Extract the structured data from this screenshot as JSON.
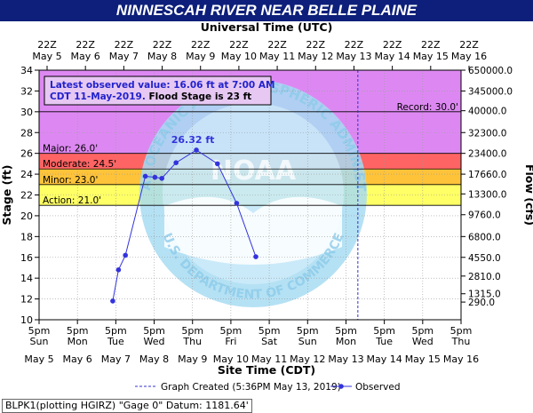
{
  "chart_data": {
    "type": "line",
    "title": "NINNESCAH RIVER NEAR BELLE PLAINE",
    "top_axis_title": "Universal Time (UTC)",
    "xlabel": "Site Time (CDT)",
    "ylabel": "Stage (ft)",
    "right_axis_label": "Flow (cfs)",
    "ylim": [
      10,
      34
    ],
    "y_ticks": [
      "10",
      "12",
      "14",
      "16",
      "18",
      "20",
      "22",
      "24",
      "26",
      "28",
      "30",
      "32",
      "34"
    ],
    "right_ticks": [
      {
        "stage": 11.7,
        "label": "290.0"
      },
      {
        "stage": 12.5,
        "label": "1315.0"
      },
      {
        "stage": 14.2,
        "label": "2810.0"
      },
      {
        "stage": 16.0,
        "label": "4550.0"
      },
      {
        "stage": 18.0,
        "label": "6800.0"
      },
      {
        "stage": 20.1,
        "label": "9760.0"
      },
      {
        "stage": 22.1,
        "label": "13300.0"
      },
      {
        "stage": 24.0,
        "label": "17660.0"
      },
      {
        "stage": 26.0,
        "label": "23400.0"
      },
      {
        "stage": 28.0,
        "label": "32300.0"
      },
      {
        "stage": 30.1,
        "label": "40000.0"
      },
      {
        "stage": 32.0,
        "label": "345000.0"
      },
      {
        "stage": 34.0,
        "label": "650000.0"
      }
    ],
    "bottom_ticks": [
      {
        "time": "5pm",
        "day": "Sun",
        "date": "May 5"
      },
      {
        "time": "5pm",
        "day": "Mon",
        "date": "May 6"
      },
      {
        "time": "5pm",
        "day": "Tue",
        "date": "May 7"
      },
      {
        "time": "5pm",
        "day": "Wed",
        "date": "May 8"
      },
      {
        "time": "5pm",
        "day": "Thu",
        "date": "May 9"
      },
      {
        "time": "5pm",
        "day": "Fri",
        "date": "May 10"
      },
      {
        "time": "5pm",
        "day": "Sat",
        "date": "May 11"
      },
      {
        "time": "5pm",
        "day": "Sun",
        "date": "May 12"
      },
      {
        "time": "5pm",
        "day": "Mon",
        "date": "May 13"
      },
      {
        "time": "5pm",
        "day": "Tue",
        "date": "May 14"
      },
      {
        "time": "5pm",
        "day": "Wed",
        "date": "May 15"
      },
      {
        "time": "5pm",
        "day": "Thu",
        "date": "May 16"
      }
    ],
    "top_ticks": [
      {
        "time": "22Z",
        "date": "May  5"
      },
      {
        "time": "22Z",
        "date": "May  6"
      },
      {
        "time": "22Z",
        "date": "May  7"
      },
      {
        "time": "22Z",
        "date": "May  8"
      },
      {
        "time": "22Z",
        "date": "May  9"
      },
      {
        "time": "22Z",
        "date": "May 10"
      },
      {
        "time": "22Z",
        "date": "May 11"
      },
      {
        "time": "22Z",
        "date": "May 12"
      },
      {
        "time": "22Z",
        "date": "May 13"
      },
      {
        "time": "22Z",
        "date": "May 14"
      },
      {
        "time": "22Z",
        "date": "May 15"
      },
      {
        "time": "22Z",
        "date": "May 16"
      }
    ],
    "flood_categories": [
      {
        "label": "Action: 21.0'",
        "from": 21.0,
        "to": 23.0,
        "color": "#ffff66"
      },
      {
        "label": "Minor: 23.0'",
        "from": 23.0,
        "to": 24.5,
        "color": "#ffc33a"
      },
      {
        "label": "Moderate: 24.5'",
        "from": 24.5,
        "to": 26.0,
        "color": "#ff6464"
      },
      {
        "label": "Major: 26.0'",
        "from": 26.0,
        "to": 34.0,
        "color": "#dd88f2"
      }
    ],
    "record_label": "Record: 30.0'",
    "record_stage": 30.0,
    "graph_created_day": 13.31,
    "series": [
      {
        "name": "Observed",
        "color": "#3333dd",
        "points": [
          {
            "day": 6.92,
            "stage": 11.8
          },
          {
            "day": 7.07,
            "stage": 14.8
          },
          {
            "day": 7.25,
            "stage": 16.2
          },
          {
            "day": 7.77,
            "stage": 23.8
          },
          {
            "day": 8.02,
            "stage": 23.7
          },
          {
            "day": 8.2,
            "stage": 23.6
          },
          {
            "day": 8.57,
            "stage": 25.1
          },
          {
            "day": 9.1,
            "stage": 26.32
          },
          {
            "day": 9.65,
            "stage": 25.0
          },
          {
            "day": 10.15,
            "stage": 21.2
          },
          {
            "day": 10.65,
            "stage": 16.06
          }
        ]
      }
    ],
    "peak_label": "26.32 ft",
    "latest_box": {
      "line1": "Latest observed value: 16.06 ft at 7:00 AM",
      "line2a": "CDT 11-May-2019.",
      "line2b": "Flood Stage is 23 ft"
    },
    "legend": {
      "created_label": "Graph Created (5:36PM May 13, 2019)",
      "observed_label": "Observed"
    },
    "watermark_text": "NATIONAL OCEANIC AND ATMOSPHERIC ADMINISTRATION",
    "watermark_text_bottom": "U.S. DEPARTMENT OF COMMERCE",
    "watermark_center": "NOAA"
  },
  "footer_text": "BLPK1(plotting HGIRZ) \"Gage 0\" Datum: 1181.64'"
}
